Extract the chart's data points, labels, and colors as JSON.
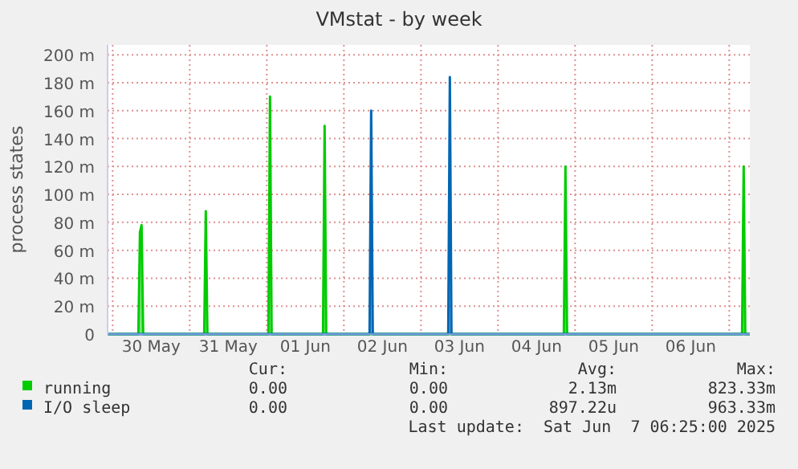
{
  "chart_data": {
    "type": "area",
    "title": "VMstat - by week",
    "ylabel": "process states",
    "xlim": [
      "2025-05-29T22:25",
      "2025-06-07T06:25"
    ],
    "xticks": [
      {
        "value": "2025-05-30T00:00",
        "label": null
      },
      {
        "value": "2025-05-30T12:00",
        "label": "30 May"
      },
      {
        "value": "2025-05-31T00:00",
        "label": null
      },
      {
        "value": "2025-05-31T12:00",
        "label": "31 May"
      },
      {
        "value": "2025-06-01T00:00",
        "label": null
      },
      {
        "value": "2025-06-01T12:00",
        "label": "01 Jun"
      },
      {
        "value": "2025-06-02T00:00",
        "label": null
      },
      {
        "value": "2025-06-02T12:00",
        "label": "02 Jun"
      },
      {
        "value": "2025-06-03T00:00",
        "label": null
      },
      {
        "value": "2025-06-03T12:00",
        "label": "03 Jun"
      },
      {
        "value": "2025-06-04T00:00",
        "label": null
      },
      {
        "value": "2025-06-04T12:00",
        "label": "04 Jun"
      },
      {
        "value": "2025-06-05T00:00",
        "label": null
      },
      {
        "value": "2025-06-05T12:00",
        "label": "05 Jun"
      },
      {
        "value": "2025-06-06T00:00",
        "label": null
      },
      {
        "value": "2025-06-06T12:00",
        "label": "06 Jun"
      },
      {
        "value": "2025-06-07T00:00",
        "label": null
      }
    ],
    "ylim": [
      0,
      207
    ],
    "yticks": [
      0,
      {
        "value": 20,
        "label": "20 m"
      },
      {
        "value": 40,
        "label": "40 m"
      },
      {
        "value": 60,
        "label": "60 m"
      },
      {
        "value": 80,
        "label": "80 m"
      },
      {
        "value": 100,
        "label": "100 m"
      },
      {
        "value": 120,
        "label": "120 m"
      },
      {
        "value": 140,
        "label": "140 m"
      },
      {
        "value": 160,
        "label": "160 m"
      },
      {
        "value": 180,
        "label": "180 m"
      },
      {
        "value": 200,
        "label": "200 m"
      }
    ],
    "grid": true,
    "legend": "bottom",
    "series": [
      {
        "name": "running",
        "color": "#00cc00",
        "x": [
          "2025-05-29T22:30",
          "2025-05-30T08:00",
          "2025-05-30T08:30",
          "2025-05-30T09:00",
          "2025-05-30T09:30",
          "2025-05-31T04:30",
          "2025-05-31T05:00",
          "2025-05-31T05:30",
          "2025-06-01T00:30",
          "2025-06-01T01:00",
          "2025-06-01T01:30",
          "2025-06-01T17:30",
          "2025-06-01T18:00",
          "2025-06-01T18:30",
          "2025-06-04T20:30",
          "2025-06-04T21:00",
          "2025-06-04T21:30",
          "2025-06-07T04:00",
          "2025-06-07T04:30",
          "2025-06-07T05:00",
          "2025-06-07T06:25"
        ],
        "values": [
          0,
          0,
          73,
          78,
          0,
          0,
          88,
          0,
          0,
          170,
          0,
          0,
          149,
          0,
          0,
          120,
          0,
          0,
          120,
          0,
          0
        ]
      },
      {
        "name": "I/O sleep",
        "color": "#0066b3",
        "x": [
          "2025-05-29T22:30",
          "2025-06-02T08:00",
          "2025-06-02T08:30",
          "2025-06-02T09:00",
          "2025-06-03T08:30",
          "2025-06-03T09:00",
          "2025-06-03T09:30",
          "2025-06-07T06:25"
        ],
        "values": [
          0,
          0,
          160,
          0,
          0,
          184,
          0,
          0
        ]
      }
    ],
    "annotations": [
      "Cur:",
      "Min:",
      "Avg:",
      "Max:",
      "0.00",
      "0.00",
      "2.13m",
      "823.33m",
      "0.00",
      "0.00",
      "897.22u",
      "963.33m",
      "Last update:  Sat Jun  7 06:25:00 2025"
    ]
  }
}
